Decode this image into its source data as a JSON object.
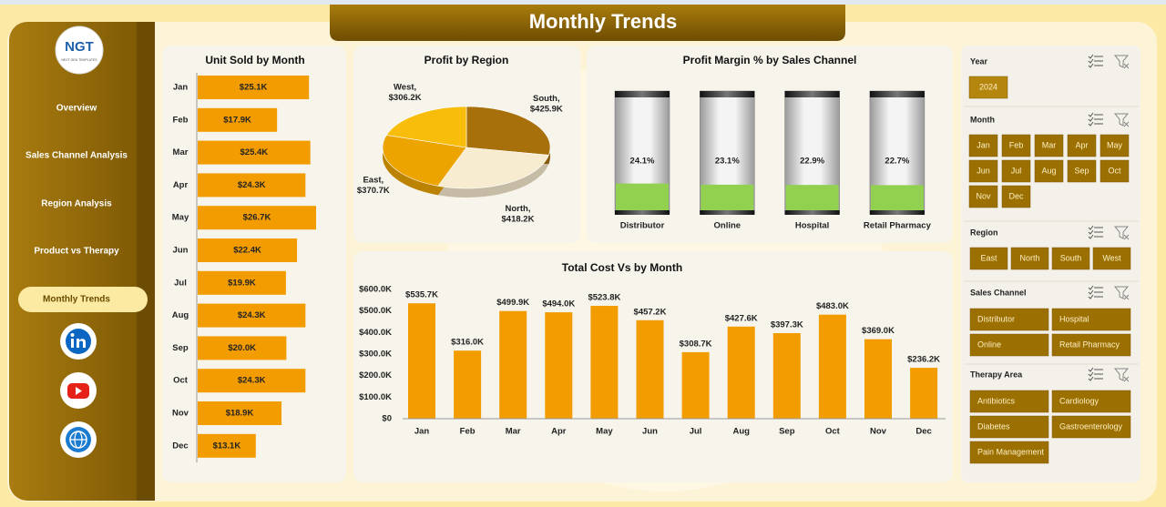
{
  "header": {
    "title": "Monthly Trends"
  },
  "sidebar": {
    "logo": {
      "text": "NGT",
      "subtitle": "NEXT GEN TEMPLATES"
    },
    "nav": [
      "Overview",
      "Sales Channel Analysis",
      "Region Analysis",
      "Product vs Therapy",
      "Monthly Trends"
    ],
    "active": 4
  },
  "chart_data": [
    {
      "type": "hbar",
      "title": "Unit Sold by Month",
      "categories": [
        "Jan",
        "Feb",
        "Mar",
        "Apr",
        "May",
        "Jun",
        "Jul",
        "Aug",
        "Sep",
        "Oct",
        "Nov",
        "Dec"
      ],
      "values": [
        25.1,
        17.9,
        25.4,
        24.3,
        26.7,
        22.4,
        19.9,
        24.3,
        20.0,
        24.3,
        18.9,
        13.1
      ],
      "value_labels": [
        "$25.1K",
        "$17.9K",
        "$25.4K",
        "$24.3K",
        "$26.7K",
        "$22.4K",
        "$19.9K",
        "$24.3K",
        "$20.0K",
        "$24.3K",
        "$18.9K",
        "$13.1K"
      ],
      "color": "#f29c00"
    },
    {
      "type": "pie",
      "title": "Profit by Region",
      "categories": [
        "South",
        "North",
        "East",
        "West"
      ],
      "values": [
        425.9,
        418.2,
        370.7,
        306.2
      ],
      "value_labels": [
        "$425.9K",
        "$418.2K",
        "$370.7K",
        "$306.2K"
      ],
      "label_separator": ",",
      "colors": [
        "#a8700a",
        "#f8ecd0",
        "#eca400",
        "#f7bd0a"
      ]
    },
    {
      "type": "bar",
      "title": "Profit Margin % by Sales Channel",
      "categories": [
        "Distributor",
        "Online",
        "Hospital",
        "Retail Pharmacy"
      ],
      "values": [
        24.1,
        23.1,
        22.9,
        22.7
      ],
      "value_labels": [
        "24.1%",
        "23.1%",
        "22.9%",
        "22.7%"
      ],
      "ylim": [
        0,
        100
      ],
      "color": "#92d050"
    },
    {
      "type": "column",
      "title": "Total Cost Vs  by Month",
      "categories": [
        "Jan",
        "Feb",
        "Mar",
        "Apr",
        "May",
        "Jun",
        "Jul",
        "Aug",
        "Sep",
        "Oct",
        "Nov",
        "Dec"
      ],
      "values": [
        535.7,
        316.0,
        499.9,
        494.0,
        523.8,
        457.2,
        308.7,
        427.6,
        397.3,
        483.0,
        369.0,
        236.2
      ],
      "value_labels": [
        "$535.7K",
        "$316.0K",
        "$499.9K",
        "$494.0K",
        "$523.8K",
        "$457.2K",
        "$308.7K",
        "$427.6K",
        "$397.3K",
        "$483.0K",
        "$369.0K",
        "$236.2K"
      ],
      "ylim": [
        0,
        600
      ],
      "yticks": [
        {
          "value": 0,
          "label": "$0"
        },
        {
          "value": 100,
          "label": "$100.0K"
        },
        {
          "value": 200,
          "label": "$200.0K"
        },
        {
          "value": 300,
          "label": "$300.0K"
        },
        {
          "value": 400,
          "label": "$400.0K"
        },
        {
          "value": 500,
          "label": "$500.0K"
        },
        {
          "value": 600,
          "label": "$600.0K"
        }
      ],
      "grid": false,
      "color": "#f29c00"
    }
  ],
  "slicers": [
    {
      "title": "Year",
      "items": [
        "2024"
      ]
    },
    {
      "title": "Month",
      "items": [
        "Jan",
        "Feb",
        "Mar",
        "Apr",
        "May",
        "Jun",
        "Jul",
        "Aug",
        "Sep",
        "Oct",
        "Nov",
        "Dec"
      ]
    },
    {
      "title": "Region",
      "items": [
        "East",
        "North",
        "South",
        "West"
      ]
    },
    {
      "title": "Sales Channel",
      "items": [
        "Distributor",
        "Hospital",
        "Online",
        "Retail Pharmacy"
      ]
    },
    {
      "title": "Therapy Area",
      "items": [
        "Antibiotics",
        "Cardiology",
        "Diabetes",
        "Gastroenterology",
        "Pain Management"
      ]
    }
  ]
}
